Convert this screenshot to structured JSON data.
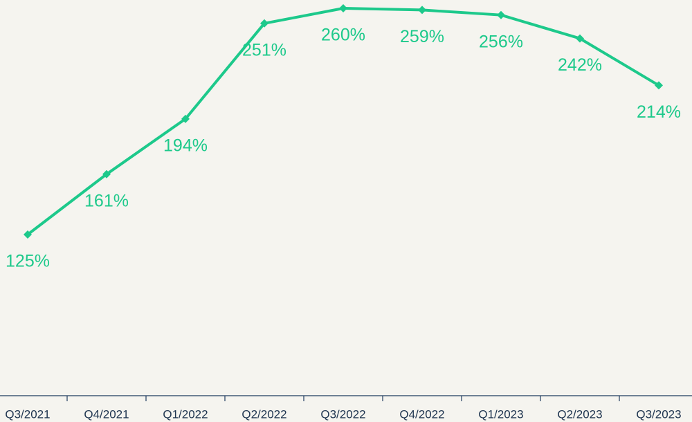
{
  "chart_data": {
    "type": "line",
    "categories": [
      "Q3/2021",
      "Q4/2021",
      "Q1/2022",
      "Q2/2022",
      "Q3/2022",
      "Q4/2022",
      "Q1/2023",
      "Q2/2023",
      "Q3/2023"
    ],
    "values": [
      125,
      161,
      194,
      251,
      260,
      259,
      256,
      242,
      214
    ],
    "value_labels": [
      "125%",
      "161%",
      "194%",
      "251%",
      "260%",
      "259%",
      "256%",
      "242%",
      "214%"
    ],
    "color": "#1dc98b"
  }
}
